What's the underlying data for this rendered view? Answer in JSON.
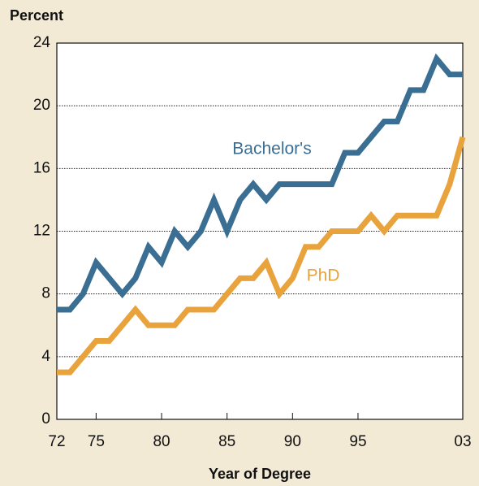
{
  "chart_data": {
    "type": "line",
    "y_axis_label": "Percent",
    "x_axis_label": "Year of Degree",
    "x": [
      1972,
      1973,
      1974,
      1975,
      1976,
      1977,
      1978,
      1979,
      1980,
      1981,
      1982,
      1983,
      1984,
      1985,
      1986,
      1987,
      1988,
      1989,
      1990,
      1991,
      1992,
      1993,
      1994,
      1995,
      1996,
      1997,
      1998,
      1999,
      2000,
      2001,
      2002,
      2003
    ],
    "series": [
      {
        "name": "Bachelor's",
        "color": "#3a6e92",
        "values": [
          7,
          7,
          8,
          10,
          9,
          8,
          9,
          11,
          10,
          12,
          11,
          12,
          14,
          12,
          14,
          15,
          14,
          15,
          15,
          15,
          15,
          15,
          17,
          17,
          18,
          19,
          19,
          21,
          21,
          23,
          22,
          22
        ]
      },
      {
        "name": "PhD",
        "color": "#e8a33d",
        "values": [
          3,
          3,
          4,
          5,
          5,
          6,
          7,
          6,
          6,
          6,
          7,
          7,
          7,
          8,
          9,
          9,
          10,
          8,
          9,
          11,
          11,
          12,
          12,
          12,
          13,
          12,
          13,
          13,
          13,
          13,
          15,
          18
        ]
      }
    ],
    "xlim": [
      1972,
      2003
    ],
    "xticks": [
      {
        "value": 1972,
        "label": "72"
      },
      {
        "value": 1975,
        "label": "75"
      },
      {
        "value": 1980,
        "label": "80"
      },
      {
        "value": 1985,
        "label": "85"
      },
      {
        "value": 1990,
        "label": "90"
      },
      {
        "value": 1995,
        "label": "95"
      },
      {
        "value": 2003,
        "label": "03"
      }
    ],
    "ylim": [
      0,
      24
    ],
    "yticks": [
      0,
      4,
      8,
      12,
      16,
      20,
      24
    ],
    "grid": true
  }
}
